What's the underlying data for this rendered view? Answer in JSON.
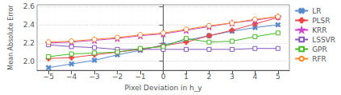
{
  "chart_data": {
    "type": "line",
    "x": [
      -5,
      -4,
      -3,
      -2,
      -1,
      0,
      1,
      2,
      3,
      4,
      5
    ],
    "series": [
      {
        "name": "LR",
        "color": "#5588cc",
        "marker": "x",
        "values": [
          1.93,
          1.97,
          2.01,
          2.07,
          2.12,
          2.18,
          2.23,
          2.28,
          2.33,
          2.37,
          2.4
        ]
      },
      {
        "name": "PLSR",
        "color": "#ee4444",
        "marker": "plus",
        "values": [
          2.03,
          2.04,
          2.07,
          2.1,
          2.13,
          2.17,
          2.21,
          2.28,
          2.34,
          2.41,
          2.48
        ]
      },
      {
        "name": "KRR",
        "color": "#cc44cc",
        "marker": "star",
        "values": [
          2.2,
          2.21,
          2.23,
          2.25,
          2.28,
          2.3,
          2.34,
          2.38,
          2.42,
          2.45,
          2.49
        ]
      },
      {
        "name": "LSSVR",
        "color": "#8855bb",
        "marker": "square_open",
        "values": [
          2.18,
          2.16,
          2.15,
          2.13,
          2.13,
          2.13,
          2.13,
          2.13,
          2.13,
          2.14,
          2.14
        ]
      },
      {
        "name": "GPR",
        "color": "#44bb22",
        "marker": "square_open",
        "values": [
          2.05,
          2.08,
          2.09,
          2.1,
          2.14,
          2.16,
          2.25,
          2.21,
          2.22,
          2.27,
          2.31
        ]
      },
      {
        "name": "RFR",
        "color": "#ff8822",
        "marker": "circle_open",
        "values": [
          2.21,
          2.22,
          2.24,
          2.26,
          2.29,
          2.31,
          2.35,
          2.39,
          2.42,
          2.46,
          2.49
        ]
      }
    ],
    "xlabel": "Pixel Deviation in h_y",
    "ylabel": "Mean Absolute Error",
    "xlim": [
      -5.5,
      5.5
    ],
    "xticks": [
      {
        "value": -5,
        "label": "−5"
      },
      {
        "value": -4,
        "label": "−4"
      },
      {
        "value": -3,
        "label": "−3"
      },
      {
        "value": -2,
        "label": "−2"
      },
      {
        "value": -1,
        "label": "−1"
      },
      0,
      1,
      2,
      3,
      4,
      5
    ],
    "ylim": [
      1.9,
      2.62
    ],
    "yticks": [
      {
        "value": 2.0,
        "label": "2.0"
      },
      2.2,
      2.4,
      2.6
    ],
    "grid": true,
    "legend": "upper right"
  }
}
